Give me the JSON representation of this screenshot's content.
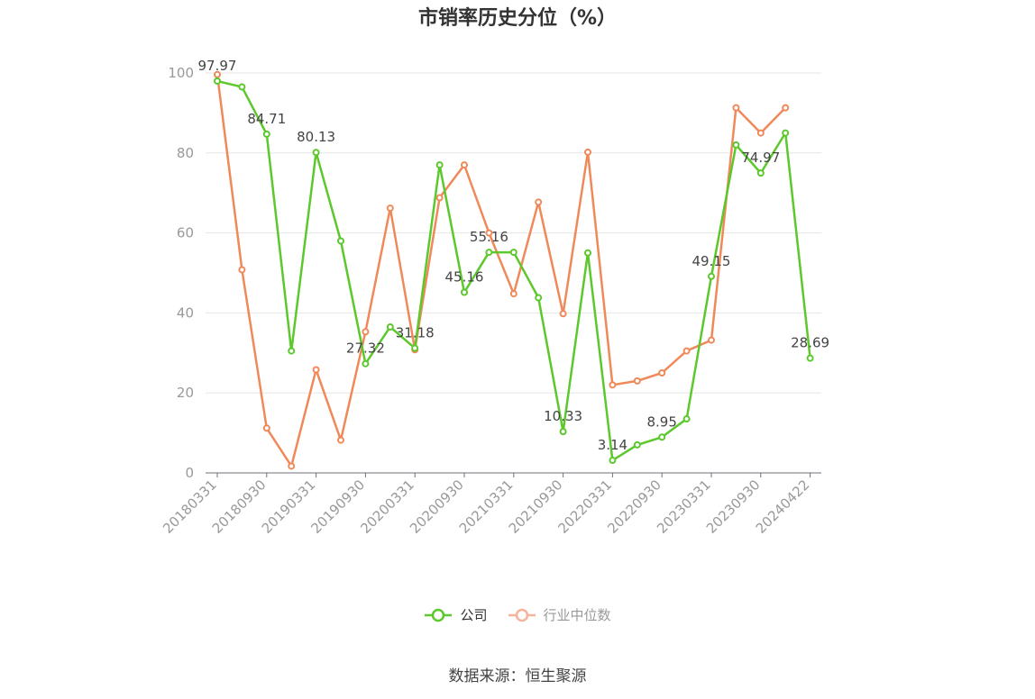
{
  "title": "市销率历史分位（%）",
  "source": "数据来源：恒生聚源",
  "legend": [
    {
      "name": "公司",
      "color": "#5cc82c"
    },
    {
      "name": "行业中位数",
      "color": "#f0895a"
    }
  ],
  "chart_data": {
    "type": "line",
    "title": "市销率历史分位（%）",
    "xlabel": "",
    "ylabel": "",
    "ylim": [
      0,
      100
    ],
    "yticks": [
      0,
      20,
      40,
      60,
      80,
      100
    ],
    "grid": true,
    "legend_position": "bottom",
    "x": [
      "20180331",
      "20180630",
      "20180930",
      "20181231",
      "20190331",
      "20190630",
      "20190930",
      "20191231",
      "20200331",
      "20200630",
      "20200930",
      "20201231",
      "20210331",
      "20210630",
      "20210930",
      "20211231",
      "20220331",
      "20220630",
      "20220930",
      "20221231",
      "20230331",
      "20230630",
      "20230930",
      "20231231",
      "20240422"
    ],
    "x_tick_labels": [
      "20180331",
      "20180930",
      "20190331",
      "20190930",
      "20200331",
      "20200930",
      "20210331",
      "20210930",
      "20220331",
      "20220930",
      "20230331",
      "20230930",
      "20240422"
    ],
    "series": [
      {
        "name": "公司",
        "color": "#5cc82c",
        "values": [
          97.97,
          96.5,
          84.71,
          30.5,
          80.13,
          58.0,
          27.32,
          36.5,
          31.18,
          77.0,
          45.16,
          55.16,
          55.16,
          43.8,
          10.33,
          55.0,
          3.14,
          7.0,
          8.95,
          13.5,
          49.15,
          82.0,
          74.97,
          85.0,
          28.69
        ],
        "labels": [
          "97.97",
          "",
          "84.71",
          "",
          "80.13",
          "",
          "27.32",
          "",
          "31.18",
          "",
          "45.16",
          "55.16",
          "",
          "",
          "10.33",
          "",
          "3.14",
          "",
          "8.95",
          "",
          "49.15",
          "",
          "74.97",
          "",
          "28.69"
        ]
      },
      {
        "name": "行业中位数",
        "color": "#f0895a",
        "values": [
          99.6,
          50.8,
          11.2,
          1.7,
          25.8,
          8.2,
          35.3,
          66.2,
          30.8,
          68.8,
          77.0,
          60.0,
          44.8,
          67.7,
          39.8,
          80.2,
          22.0,
          23.0,
          25.0,
          30.5,
          33.2,
          91.3,
          85.0,
          91.3,
          null
        ]
      }
    ]
  }
}
